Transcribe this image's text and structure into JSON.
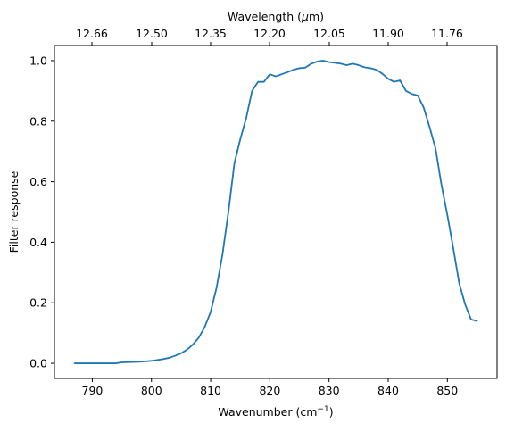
{
  "chart_data": {
    "type": "line",
    "xlabel": "Wavenumber (cm",
    "xlabel_sup": "−1",
    "xlabel_end": ")",
    "ylabel": "Filter response",
    "x2label": "Wavelength (",
    "x2label_mu": "μ",
    "x2label_end": "m)",
    "xlim": [
      862.0,
      858.0
    ],
    "ylim": [
      -0.05,
      1.05
    ],
    "xticks": [
      790,
      800,
      810,
      820,
      830,
      840,
      850
    ],
    "xticklabels": [
      "790",
      "800",
      "810",
      "820",
      "830",
      "840",
      "850"
    ],
    "yticks": [
      0.0,
      0.2,
      0.4,
      0.6,
      0.8,
      1.0
    ],
    "yticklabels": [
      "0.0",
      "0.2",
      "0.4",
      "0.6",
      "0.8",
      "1.0"
    ],
    "x2ticklabels": [
      "12.66",
      "12.50",
      "12.35",
      "12.20",
      "12.05",
      "11.90",
      "11.76"
    ],
    "grid": false,
    "legend": "none",
    "series": [
      {
        "color": "#1f77b4",
        "x": [
          787,
          790,
          794,
          795,
          798,
          800,
          802,
          803,
          804,
          805,
          806,
          807,
          808,
          809,
          810,
          811,
          812,
          813,
          814,
          815,
          816,
          817,
          818,
          819,
          820,
          821,
          822,
          823,
          824,
          825,
          826,
          827,
          828,
          829,
          830,
          831,
          832,
          833,
          834,
          835,
          836,
          837,
          838,
          839,
          840,
          841,
          842,
          843,
          844,
          845,
          846,
          847,
          848,
          849,
          850,
          851,
          852,
          853,
          854,
          855
        ],
        "y": [
          0.0,
          0.0,
          0.0,
          0.003,
          0.005,
          0.008,
          0.014,
          0.018,
          0.025,
          0.033,
          0.045,
          0.062,
          0.085,
          0.12,
          0.17,
          0.25,
          0.36,
          0.5,
          0.66,
          0.74,
          0.81,
          0.9,
          0.93,
          0.93,
          0.955,
          0.948,
          0.955,
          0.962,
          0.97,
          0.975,
          0.977,
          0.99,
          0.997,
          1.0,
          0.995,
          0.993,
          0.99,
          0.985,
          0.99,
          0.985,
          0.978,
          0.975,
          0.97,
          0.957,
          0.94,
          0.93,
          0.935,
          0.9,
          0.89,
          0.885,
          0.845,
          0.78,
          0.71,
          0.59,
          0.49,
          0.38,
          0.265,
          0.195,
          0.145,
          0.14
        ]
      }
    ]
  }
}
